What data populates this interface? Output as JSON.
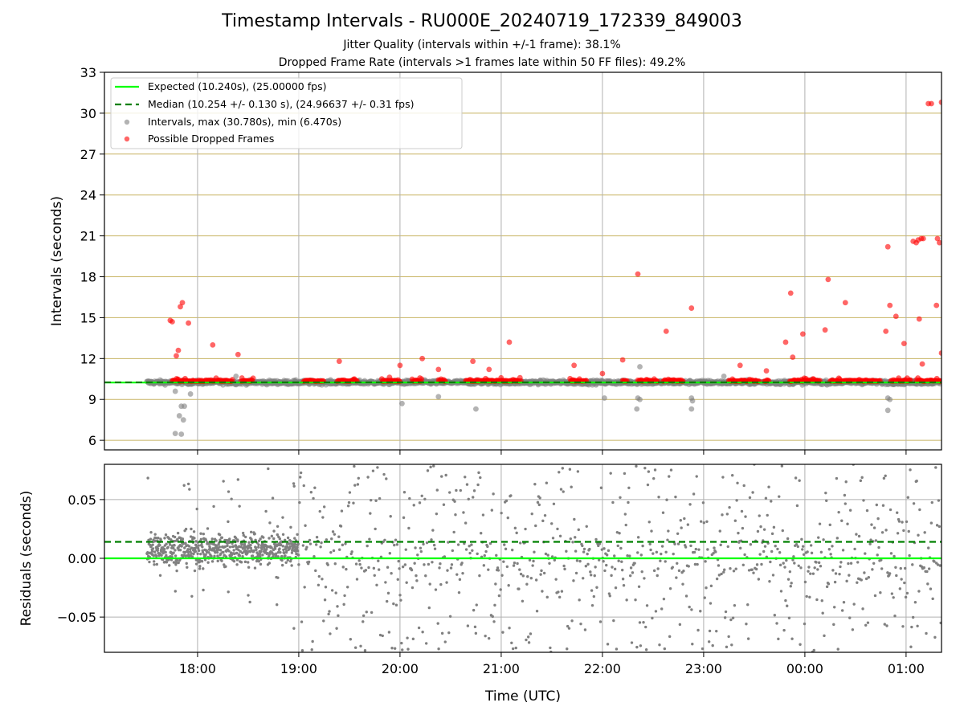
{
  "title": "Timestamp Intervals - RU000E_20240719_172339_849003",
  "subtitle_jitter": "Jitter Quality (intervals within +/-1 frame): 38.1%",
  "subtitle_dropped": "Dropped Frame Rate (intervals >1 frames late within 50 FF files): 49.2%",
  "colors": {
    "expected": "#00ff00",
    "median": "#008000",
    "intervals": "#808080",
    "dropped": "#ff0000",
    "hgrid_top": "#c8b464",
    "grid": "#b0b0b0"
  },
  "chart_data": [
    {
      "type": "scatter",
      "ylabel": "Intervals (seconds)",
      "x_axis": "time of day (UTC), hours continuing past midnight",
      "xlim": [
        17.08,
        25.35
      ],
      "ylim": [
        5.3,
        33
      ],
      "yticks": [
        6,
        9,
        12,
        15,
        18,
        21,
        24,
        27,
        30,
        33
      ],
      "grid": true,
      "legend_placement": "upper-left",
      "legend": [
        {
          "key": "expected",
          "label": "Expected (10.240s), (25.00000 fps)"
        },
        {
          "key": "median",
          "label": "Median (10.254 +/- 0.130 s), (24.96637 +/- 0.31 fps)"
        },
        {
          "key": "intervals",
          "label": "Intervals, max (30.780s), min (6.470s)"
        },
        {
          "key": "dropped",
          "label": "Possible Dropped Frames"
        }
      ],
      "expected_interval": 10.24,
      "median_interval": 10.254,
      "interval_band": {
        "x_start": 17.5,
        "x_end": 25.35,
        "y_center": 10.25,
        "spread": 0.13
      },
      "dense_dropped_runs": [
        [
          17.75,
          18.35
        ],
        [
          18.43,
          18.55
        ],
        [
          19.05,
          19.25
        ],
        [
          19.38,
          19.58
        ],
        [
          19.82,
          20.0
        ],
        [
          20.12,
          20.22
        ],
        [
          20.38,
          20.45
        ],
        [
          20.65,
          21.2
        ],
        [
          21.68,
          21.85
        ],
        [
          22.2,
          22.25
        ],
        [
          22.35,
          22.55
        ],
        [
          22.6,
          22.8
        ],
        [
          23.25,
          23.55
        ],
        [
          23.6,
          23.65
        ],
        [
          23.85,
          24.15
        ],
        [
          24.25,
          24.75
        ],
        [
          24.85,
          25.05
        ],
        [
          25.1,
          25.35
        ]
      ],
      "dropped_outliers": [
        [
          17.73,
          14.8
        ],
        [
          17.75,
          14.7
        ],
        [
          17.79,
          12.2
        ],
        [
          17.81,
          12.6
        ],
        [
          17.83,
          15.8
        ],
        [
          17.85,
          16.1
        ],
        [
          17.91,
          14.6
        ],
        [
          18.15,
          13.0
        ],
        [
          18.4,
          12.3
        ],
        [
          19.4,
          11.8
        ],
        [
          20.0,
          11.5
        ],
        [
          20.22,
          12.0
        ],
        [
          20.38,
          11.2
        ],
        [
          20.72,
          11.8
        ],
        [
          20.88,
          11.2
        ],
        [
          21.08,
          13.2
        ],
        [
          21.72,
          11.5
        ],
        [
          22.0,
          10.9
        ],
        [
          22.2,
          11.9
        ],
        [
          22.35,
          18.2
        ],
        [
          22.63,
          14.0
        ],
        [
          22.88,
          15.7
        ],
        [
          23.36,
          11.5
        ],
        [
          23.62,
          11.1
        ],
        [
          23.81,
          13.2
        ],
        [
          23.86,
          16.8
        ],
        [
          23.88,
          12.1
        ],
        [
          23.98,
          13.8
        ],
        [
          24.2,
          14.1
        ],
        [
          24.23,
          17.8
        ],
        [
          24.4,
          16.1
        ],
        [
          24.8,
          14.0
        ],
        [
          24.82,
          20.2
        ],
        [
          24.84,
          15.9
        ],
        [
          24.9,
          15.1
        ],
        [
          24.98,
          13.1
        ],
        [
          25.07,
          20.6
        ],
        [
          25.1,
          20.5
        ],
        [
          25.12,
          20.7
        ],
        [
          25.15,
          20.8
        ],
        [
          25.17,
          20.8
        ],
        [
          25.13,
          14.9
        ],
        [
          25.16,
          11.6
        ],
        [
          25.22,
          30.7
        ],
        [
          25.25,
          30.7
        ],
        [
          25.3,
          15.9
        ],
        [
          25.31,
          20.8
        ],
        [
          25.33,
          20.5
        ],
        [
          25.35,
          30.8
        ],
        [
          25.35,
          12.4
        ]
      ],
      "interval_outliers": [
        [
          17.78,
          6.5
        ],
        [
          17.78,
          9.6
        ],
        [
          17.82,
          7.8
        ],
        [
          17.84,
          6.45
        ],
        [
          17.86,
          7.5
        ],
        [
          17.84,
          8.5
        ],
        [
          17.87,
          8.5
        ],
        [
          17.93,
          9.4
        ],
        [
          18.38,
          10.7
        ],
        [
          20.02,
          8.7
        ],
        [
          20.38,
          9.2
        ],
        [
          20.75,
          8.3
        ],
        [
          22.02,
          9.1
        ],
        [
          22.35,
          9.1
        ],
        [
          22.37,
          9.0
        ],
        [
          22.34,
          8.3
        ],
        [
          22.37,
          11.4
        ],
        [
          22.88,
          9.1
        ],
        [
          22.88,
          8.3
        ],
        [
          22.89,
          8.9
        ],
        [
          23.2,
          10.7
        ],
        [
          24.82,
          9.1
        ],
        [
          24.84,
          9.0
        ],
        [
          24.82,
          8.2
        ]
      ]
    },
    {
      "type": "scatter",
      "xlabel": "Time (UTC)",
      "ylabel": "Residuals (seconds)",
      "xlim": [
        17.08,
        25.35
      ],
      "ylim": [
        -0.08,
        0.08
      ],
      "yticks": [
        0.05,
        0.0,
        -0.05
      ],
      "ytick_labels": [
        "0.05",
        "0.00",
        "−0.05"
      ],
      "xticks": [
        18,
        19,
        20,
        21,
        22,
        23,
        24,
        25
      ],
      "xtick_labels": [
        "18:00",
        "19:00",
        "20:00",
        "21:00",
        "22:00",
        "23:00",
        "00:00",
        "01:00"
      ],
      "grid": true,
      "expected_residual": 0.0,
      "median_residual": 0.014,
      "residual_phases": [
        {
          "x_start": 17.5,
          "x_end": 19.0,
          "center": 0.008,
          "spread": 0.012,
          "tail": 0.075
        },
        {
          "x_start": 19.0,
          "x_end": 25.35,
          "center": 0.0,
          "spread": 0.08,
          "tail": 0.08
        }
      ]
    }
  ]
}
